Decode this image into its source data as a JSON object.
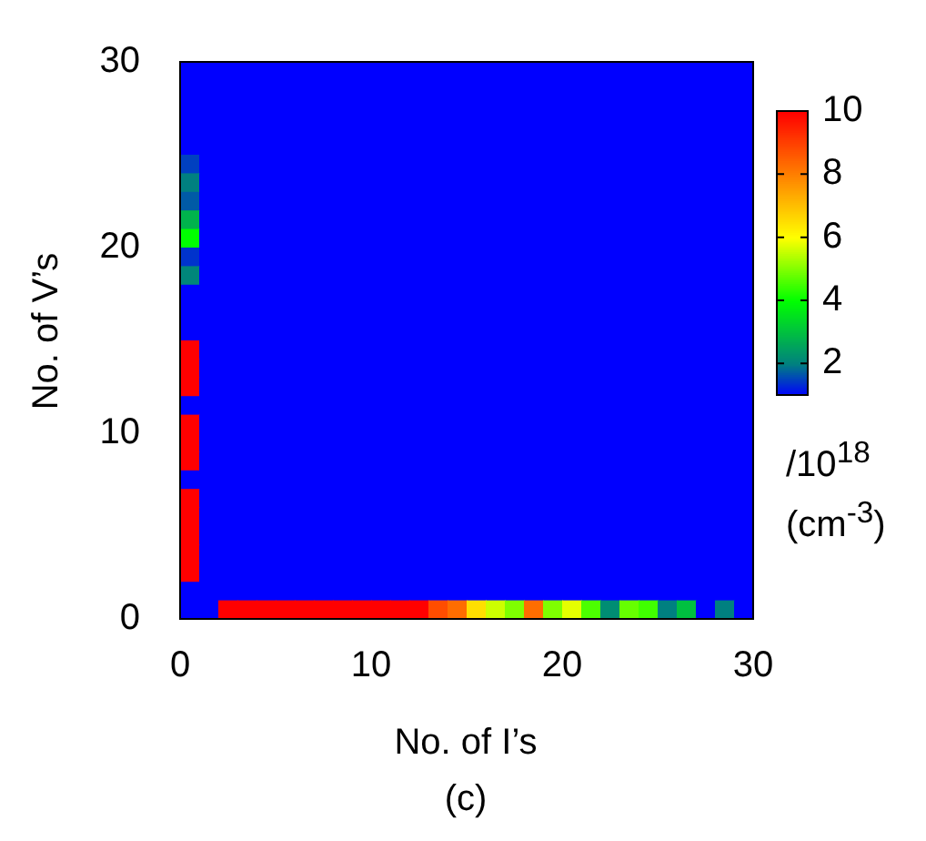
{
  "chart_data": {
    "type": "heatmap",
    "xlabel": "No. of I’s",
    "ylabel": "No. of V’s",
    "clabel": "/10$^{18}$\n(cm$^{-3}$)",
    "annotations": [
      "(c)"
    ],
    "xlim": [
      0,
      30
    ],
    "ylim": [
      0,
      30
    ],
    "xticks": [
      0,
      10,
      20,
      30
    ],
    "yticks": [
      0,
      10,
      20,
      30
    ],
    "clim": [
      1,
      10
    ],
    "cticks": [
      2,
      4,
      6,
      8,
      10
    ],
    "cells": [
      [
        1,
        1,
        1,
        1,
        1,
        1,
        1,
        1,
        1,
        1,
        1,
        1,
        1,
        1,
        1,
        1,
        1,
        1,
        1,
        1,
        1,
        1,
        1,
        1,
        1,
        1,
        1,
        1,
        1,
        1
      ],
      [
        1,
        1,
        1,
        1,
        1,
        1,
        1,
        1,
        1,
        1,
        1,
        1,
        1,
        1,
        1,
        1,
        1,
        1,
        1,
        1,
        1,
        1,
        1,
        1,
        1,
        1,
        1,
        1,
        1,
        1
      ],
      [
        1,
        1,
        1,
        1,
        1,
        1,
        1,
        1,
        1,
        1,
        1,
        1,
        1,
        1,
        1,
        1,
        1,
        1,
        1,
        1,
        1,
        1,
        1,
        1,
        1,
        1,
        1,
        1,
        1,
        1
      ],
      [
        1,
        1,
        1,
        1,
        1,
        1,
        1,
        1,
        1,
        1,
        1,
        1,
        1,
        1,
        1,
        1,
        1,
        1,
        1,
        1,
        1,
        1,
        1,
        1,
        1,
        1,
        1,
        1,
        1,
        1
      ],
      [
        1,
        1,
        1,
        1,
        1,
        1,
        1,
        1,
        1,
        1,
        1,
        1,
        1,
        1,
        1,
        1,
        1,
        1,
        1,
        1,
        1,
        1,
        1,
        1,
        1,
        1,
        1,
        1,
        1,
        1
      ],
      [
        1.5,
        1,
        1,
        1,
        1,
        1,
        1,
        1,
        1,
        1,
        1,
        1,
        1,
        1,
        1,
        1,
        1,
        1,
        1,
        1,
        1,
        1,
        1,
        1,
        1,
        1,
        1,
        1,
        1,
        1
      ],
      [
        2,
        1,
        1,
        1,
        1,
        1,
        1,
        1,
        1,
        1,
        1,
        1,
        1,
        1,
        1,
        1,
        1,
        1,
        1,
        1,
        1,
        1,
        1,
        1,
        1,
        1,
        1,
        1,
        1,
        1
      ],
      [
        1.7,
        1,
        1,
        1,
        1,
        1,
        1,
        1,
        1,
        1,
        1,
        1,
        1,
        1,
        1,
        1,
        1,
        1,
        1,
        1,
        1,
        1,
        1,
        1,
        1,
        1,
        1,
        1,
        1,
        1
      ],
      [
        2.8,
        1,
        1,
        1,
        1,
        1,
        1,
        1,
        1,
        1,
        1,
        1,
        1,
        1,
        1,
        1,
        1,
        1,
        1,
        1,
        1,
        1,
        1,
        1,
        1,
        1,
        1,
        1,
        1,
        1
      ],
      [
        4,
        1,
        1,
        1,
        1,
        1,
        1,
        1,
        1,
        1,
        1,
        1,
        1,
        1,
        1,
        1,
        1,
        1,
        1,
        1,
        1,
        1,
        1,
        1,
        1,
        1,
        1,
        1,
        1,
        1
      ],
      [
        1.4,
        1,
        1,
        1,
        1,
        1,
        1,
        1,
        1,
        1,
        1,
        1,
        1,
        1,
        1,
        1,
        1,
        1,
        1,
        1,
        1,
        1,
        1,
        1,
        1,
        1,
        1,
        1,
        1,
        1
      ],
      [
        2.1,
        1,
        1,
        1,
        1,
        1,
        1,
        1,
        1,
        1,
        1,
        1,
        1,
        1,
        1,
        1,
        1,
        1,
        1,
        1,
        1,
        1,
        1,
        1,
        1,
        1,
        1,
        1,
        1,
        1
      ],
      [
        1,
        1,
        1,
        1,
        1,
        1,
        1,
        1,
        1,
        1,
        1,
        1,
        1,
        1,
        1,
        1,
        1,
        1,
        1,
        1,
        1,
        1,
        1,
        1,
        1,
        1,
        1,
        1,
        1,
        1
      ],
      [
        1,
        1,
        1,
        1,
        1,
        1,
        1,
        1,
        1,
        1,
        1,
        1,
        1,
        1,
        1,
        1,
        1,
        1,
        1,
        1,
        1,
        1,
        1,
        1,
        1,
        1,
        1,
        1,
        1,
        1
      ],
      [
        1,
        1,
        1,
        1,
        1,
        1,
        1,
        1,
        1,
        1,
        1,
        1,
        1,
        1,
        1,
        1,
        1,
        1,
        1,
        1,
        1,
        1,
        1,
        1,
        1,
        1,
        1,
        1,
        1,
        1
      ],
      [
        10,
        1,
        1,
        1,
        1,
        1,
        1,
        1,
        1,
        1,
        1,
        1,
        1,
        1,
        1,
        1,
        1,
        1,
        1,
        1,
        1,
        1,
        1,
        1,
        1,
        1,
        1,
        1,
        1,
        1
      ],
      [
        10,
        1,
        1,
        1,
        1,
        1,
        1,
        1,
        1,
        1,
        1,
        1,
        1,
        1,
        1,
        1,
        1,
        1,
        1,
        1,
        1,
        1,
        1,
        1,
        1,
        1,
        1,
        1,
        1,
        1
      ],
      [
        10,
        1,
        1,
        1,
        1,
        1,
        1,
        1,
        1,
        1,
        1,
        1,
        1,
        1,
        1,
        1,
        1,
        1,
        1,
        1,
        1,
        1,
        1,
        1,
        1,
        1,
        1,
        1,
        1,
        1
      ],
      [
        1,
        1,
        1,
        1,
        1,
        1,
        1,
        1,
        1,
        1,
        1,
        1,
        1,
        1,
        1,
        1,
        1,
        1,
        1,
        1,
        1,
        1,
        1,
        1,
        1,
        1,
        1,
        1,
        1,
        1
      ],
      [
        10,
        1,
        1,
        1,
        1,
        1,
        1,
        1,
        1,
        1,
        1,
        1,
        1,
        1,
        1,
        1,
        1,
        1,
        1,
        1,
        1,
        1,
        1,
        1,
        1,
        1,
        1,
        1,
        1,
        1
      ],
      [
        10,
        1,
        1,
        1,
        1,
        1,
        1,
        1,
        1,
        1,
        1,
        1,
        1,
        1,
        1,
        1,
        1,
        1,
        1,
        1,
        1,
        1,
        1,
        1,
        1,
        1,
        1,
        1,
        1,
        1
      ],
      [
        10,
        1,
        1,
        1,
        1,
        1,
        1,
        1,
        1,
        1,
        1,
        1,
        1,
        1,
        1,
        1,
        1,
        1,
        1,
        1,
        1,
        1,
        1,
        1,
        1,
        1,
        1,
        1,
        1,
        1
      ],
      [
        1,
        1,
        1,
        1,
        1,
        1,
        1,
        1,
        1,
        1,
        1,
        1,
        1,
        1,
        1,
        1,
        1,
        1,
        1,
        1,
        1,
        1,
        1,
        1,
        1,
        1,
        1,
        1,
        1,
        1
      ],
      [
        10,
        1,
        1,
        1,
        1,
        1,
        1,
        1,
        1,
        1,
        1,
        1,
        1,
        1,
        1,
        1,
        1,
        1,
        1,
        1,
        1,
        1,
        1,
        1,
        1,
        1,
        1,
        1,
        1,
        1
      ],
      [
        10,
        1,
        1,
        1,
        1,
        1,
        1,
        1,
        1,
        1,
        1,
        1,
        1,
        1,
        1,
        1,
        1,
        1,
        1,
        1,
        1,
        1,
        1,
        1,
        1,
        1,
        1,
        1,
        1,
        1
      ],
      [
        10,
        1,
        1,
        1,
        1,
        1,
        1,
        1,
        1,
        1,
        1,
        1,
        1,
        1,
        1,
        1,
        1,
        1,
        1,
        1,
        1,
        1,
        1,
        1,
        1,
        1,
        1,
        1,
        1,
        1
      ],
      [
        10,
        1,
        1,
        1,
        1,
        1,
        1,
        1,
        1,
        1,
        1,
        1,
        1,
        1,
        1,
        1,
        1,
        1,
        1,
        1,
        1,
        1,
        1,
        1,
        1,
        1,
        1,
        1,
        1,
        1
      ],
      [
        10,
        1,
        1,
        1,
        1,
        1,
        1,
        1,
        1,
        1,
        1,
        1,
        1,
        1,
        1,
        1,
        1,
        1,
        1,
        1,
        1,
        1,
        1,
        1,
        1,
        1,
        1,
        1,
        1,
        1
      ],
      [
        1,
        1,
        1,
        1,
        1,
        1,
        1,
        1,
        1,
        1,
        1,
        1,
        1,
        1,
        1,
        1,
        1,
        1,
        1,
        1,
        1,
        1,
        1,
        1,
        1,
        1,
        1,
        1,
        1,
        1
      ],
      [
        1,
        1,
        10,
        10,
        10,
        10,
        10,
        10,
        10,
        10,
        10,
        10,
        10,
        8.8,
        8.3,
        6.5,
        5.6,
        5,
        8.3,
        5,
        5.8,
        4.6,
        2.2,
        4.8,
        4.5,
        2,
        3,
        1,
        2,
        1
      ]
    ]
  }
}
